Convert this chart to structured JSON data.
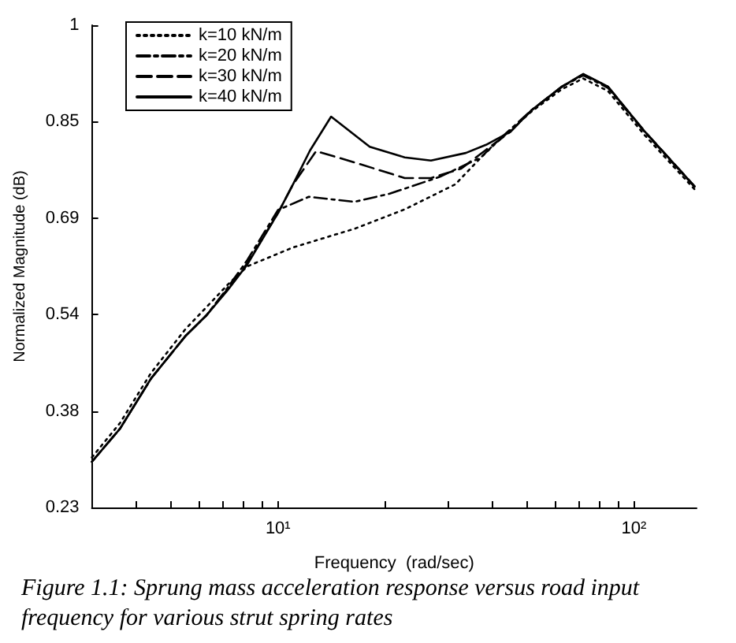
{
  "chart_data": {
    "type": "line",
    "xlabel": "Frequency  (rad/sec)",
    "ylabel": "Normalized Magnitude (dB)",
    "annotations": [
      "Figure 1.1: Sprung mass acceleration response versus road input frequency for various strut spring rates"
    ],
    "log": "x",
    "xlim": [
      3,
      150
    ],
    "xticks": [
      {
        "value": 4,
        "label": null
      },
      {
        "value": 5,
        "label": null
      },
      {
        "value": 6,
        "label": null
      },
      {
        "value": 7,
        "label": null
      },
      {
        "value": 8,
        "label": null
      },
      {
        "value": 9,
        "label": null
      },
      {
        "value": 10,
        "label": "10¹"
      },
      {
        "value": 20,
        "label": null
      },
      {
        "value": 30,
        "label": null
      },
      {
        "value": 40,
        "label": null
      },
      {
        "value": 50,
        "label": null
      },
      {
        "value": 60,
        "label": null
      },
      {
        "value": 70,
        "label": null
      },
      {
        "value": 80,
        "label": null
      },
      {
        "value": 90,
        "label": null
      },
      {
        "value": 100,
        "label": "10²"
      }
    ],
    "ylim": [
      0.23,
      1
    ],
    "yticks": [
      {
        "value": 0.23,
        "label": "0.23"
      },
      {
        "value": 0.384,
        "label": "0.38"
      },
      {
        "value": 0.538,
        "label": "0.54"
      },
      {
        "value": 0.692,
        "label": "0.69"
      },
      {
        "value": 0.846,
        "label": "0.85"
      },
      {
        "value": 1,
        "label": "1"
      }
    ],
    "grid": false,
    "legend": "top left",
    "marker": "none",
    "series": [
      {
        "name": "k=10 kN/m",
        "color": "#000000",
        "line_style": "dotted",
        "x": [
          3,
          3.6,
          4.4,
          5.5,
          6.3,
          7.2,
          8.2,
          11,
          16.4,
          22.7,
          31.5,
          37.2,
          41,
          51.5,
          62.8,
          72,
          84.5,
          107,
          148
        ],
        "values": [
          0.31,
          0.365,
          0.445,
          0.515,
          0.55,
          0.585,
          0.615,
          0.645,
          0.675,
          0.706,
          0.746,
          0.789,
          0.812,
          0.862,
          0.898,
          0.915,
          0.895,
          0.825,
          0.738
        ]
      },
      {
        "name": "k=20 kN/m",
        "color": "#000000",
        "line_style": "dashdot",
        "x": [
          3,
          3.6,
          4.4,
          5.5,
          6.3,
          7.2,
          8.2,
          10,
          12.2,
          16.4,
          20.6,
          28.5,
          37.2,
          41,
          51.5,
          62.8,
          72,
          84.5,
          107,
          148
        ],
        "values": [
          0.303,
          0.356,
          0.436,
          0.504,
          0.537,
          0.58,
          0.625,
          0.705,
          0.726,
          0.718,
          0.731,
          0.758,
          0.789,
          0.813,
          0.864,
          0.902,
          0.92,
          0.9,
          0.83,
          0.742
        ]
      },
      {
        "name": "k=30 kN/m",
        "color": "#000000",
        "line_style": "dashed",
        "x": [
          3,
          3.6,
          4.4,
          5.5,
          6.3,
          7.2,
          8.2,
          10,
          11,
          12.8,
          16.4,
          22.7,
          26.9,
          32.7,
          38.4,
          45,
          51.5,
          62.8,
          72,
          84.5,
          107,
          148
        ],
        "values": [
          0.303,
          0.356,
          0.436,
          0.504,
          0.537,
          0.578,
          0.62,
          0.7,
          0.745,
          0.799,
          0.781,
          0.756,
          0.756,
          0.771,
          0.801,
          0.83,
          0.864,
          0.902,
          0.922,
          0.902,
          0.831,
          0.743
        ]
      },
      {
        "name": "k=40 kN/m",
        "color": "#000000",
        "line_style": "solid",
        "x": [
          3,
          3.6,
          4.4,
          5.5,
          6.3,
          7.2,
          8.2,
          10,
          11,
          12.3,
          14.1,
          18.1,
          22.7,
          26.9,
          33.7,
          38.4,
          45,
          51.5,
          62.8,
          72.1,
          84.5,
          107,
          148
        ],
        "values": [
          0.303,
          0.356,
          0.436,
          0.504,
          0.537,
          0.576,
          0.618,
          0.7,
          0.745,
          0.8,
          0.854,
          0.806,
          0.789,
          0.784,
          0.796,
          0.809,
          0.83,
          0.864,
          0.902,
          0.922,
          0.902,
          0.831,
          0.743
        ]
      }
    ]
  }
}
